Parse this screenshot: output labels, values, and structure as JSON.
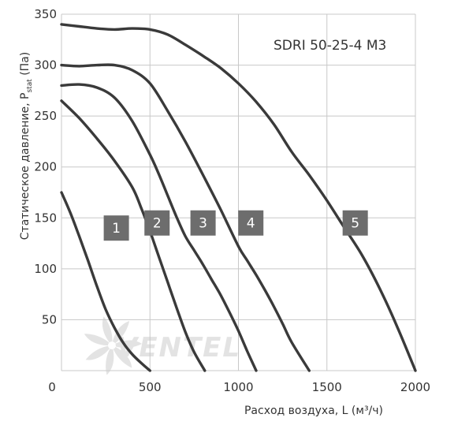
{
  "chart_data": {
    "type": "line",
    "title": "SDRI 50-25-4 M3",
    "xlabel": "Расход воздуха, L (м³/ч)",
    "ylabel": {
      "text": "Статическое давление, P",
      "subscript": "stat",
      "unit": "(Па)"
    },
    "xlim": [
      0,
      2000
    ],
    "ylim": [
      0,
      350
    ],
    "x_ticks": [
      0,
      500,
      1000,
      1500,
      2000
    ],
    "y_ticks": [
      50,
      100,
      150,
      200,
      250,
      300,
      350
    ],
    "grid": true,
    "series": [
      {
        "name": "1",
        "label_at": [
          310,
          140
        ],
        "x": [
          0,
          50,
          100,
          150,
          200,
          250,
          300,
          350,
          400,
          460,
          500
        ],
        "y": [
          175,
          155,
          132,
          108,
          83,
          60,
          42,
          27,
          16,
          6,
          0
        ]
      },
      {
        "name": "2",
        "label_at": [
          540,
          145
        ],
        "x": [
          0,
          100,
          200,
          300,
          400,
          450,
          500,
          550,
          600,
          650,
          700,
          750,
          810
        ],
        "y": [
          265,
          248,
          228,
          206,
          180,
          160,
          137,
          112,
          87,
          62,
          38,
          18,
          0
        ]
      },
      {
        "name": "3",
        "label_at": [
          800,
          145
        ],
        "x": [
          0,
          100,
          200,
          300,
          400,
          500,
          550,
          600,
          650,
          700,
          750,
          800,
          850,
          900,
          950,
          1000,
          1050,
          1100
        ],
        "y": [
          280,
          281,
          278,
          268,
          245,
          212,
          193,
          172,
          151,
          132,
          118,
          104,
          89,
          74,
          57,
          39,
          19,
          0
        ]
      },
      {
        "name": "4",
        "label_at": [
          1070,
          145
        ],
        "x": [
          0,
          100,
          200,
          300,
          400,
          500,
          600,
          700,
          800,
          900,
          1000,
          1050,
          1100,
          1150,
          1200,
          1250,
          1300,
          1400
        ],
        "y": [
          300,
          299,
          300,
          300,
          295,
          282,
          255,
          225,
          192,
          158,
          122,
          108,
          94,
          79,
          63,
          46,
          28,
          0
        ]
      },
      {
        "name": "5",
        "label_at": [
          1660,
          145
        ],
        "x": [
          0,
          100,
          200,
          300,
          400,
          500,
          600,
          700,
          800,
          900,
          1000,
          1100,
          1200,
          1300,
          1400,
          1500,
          1600,
          1700,
          1800,
          1900,
          2000
        ],
        "y": [
          340,
          338,
          336,
          335,
          336,
          335,
          330,
          320,
          309,
          297,
          282,
          264,
          242,
          215,
          192,
          167,
          140,
          113,
          80,
          42,
          0
        ]
      }
    ]
  },
  "watermark": "VENTEL",
  "colors": {
    "curve": "#3a3a3a",
    "label_box": "#6d6d6d",
    "grid": "#c8c8c8",
    "watermark": "#e3e3e3"
  }
}
